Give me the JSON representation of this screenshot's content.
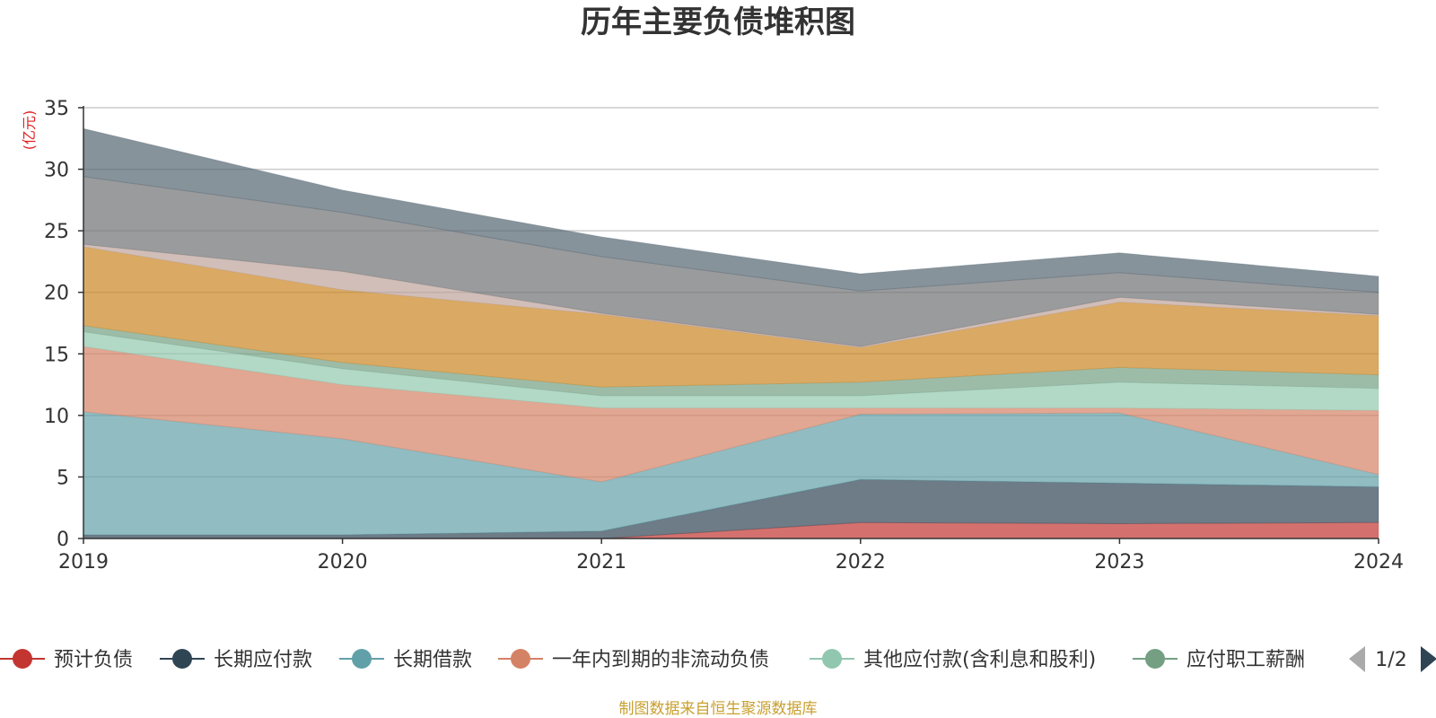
{
  "chart_data": {
    "type": "area",
    "title": "历年主要负债堆积图",
    "ylabel": "(亿元)",
    "ylim": [
      0,
      35
    ],
    "yticks": [
      "0",
      "5",
      "10",
      "15",
      "20",
      "25",
      "30",
      "35"
    ],
    "categories": [
      "2019",
      "2020",
      "2021",
      "2022",
      "2023",
      "2024"
    ],
    "grid": true,
    "legend_position": "bottom",
    "series": [
      {
        "name": "预计负债",
        "color": "#c23531",
        "values": [
          0.0,
          0.0,
          0.0,
          1.3,
          1.2,
          1.3
        ]
      },
      {
        "name": "长期应付款",
        "color": "#2f4554",
        "values": [
          0.3,
          0.3,
          0.6,
          3.5,
          3.3,
          2.9
        ]
      },
      {
        "name": "长期借款",
        "color": "#61a0a8",
        "values": [
          10.0,
          7.8,
          4.0,
          5.3,
          5.7,
          1.0
        ]
      },
      {
        "name": "一年内到期的非流动负债",
        "color": "#d48265",
        "values": [
          5.3,
          4.4,
          6.0,
          0.5,
          0.4,
          5.2
        ]
      },
      {
        "name": "其他应付款(含利息和股利)",
        "color": "#91c7ae",
        "values": [
          1.2,
          1.3,
          1.0,
          1.0,
          2.1,
          1.8
        ]
      },
      {
        "name": "应付职工薪酬",
        "color": "#749f83",
        "values": [
          0.5,
          0.5,
          0.7,
          1.1,
          1.2,
          1.1
        ]
      },
      {
        "name": "",
        "color": "#ca8622",
        "values": [
          6.4,
          5.9,
          5.9,
          2.8,
          5.3,
          4.8
        ]
      },
      {
        "name": "",
        "color": "#bda29a",
        "values": [
          0.2,
          1.5,
          0.1,
          0.1,
          0.4,
          0.1
        ]
      },
      {
        "name": "",
        "color": "#6e7074",
        "values": [
          5.5,
          4.8,
          4.6,
          4.5,
          2.0,
          1.8
        ]
      },
      {
        "name": "",
        "color": "#546570",
        "values": [
          3.9,
          1.8,
          1.6,
          1.4,
          1.6,
          1.3
        ]
      }
    ],
    "legend_page": "1/2"
  },
  "footer": {
    "source": "制图数据来自恒生聚源数据库"
  }
}
